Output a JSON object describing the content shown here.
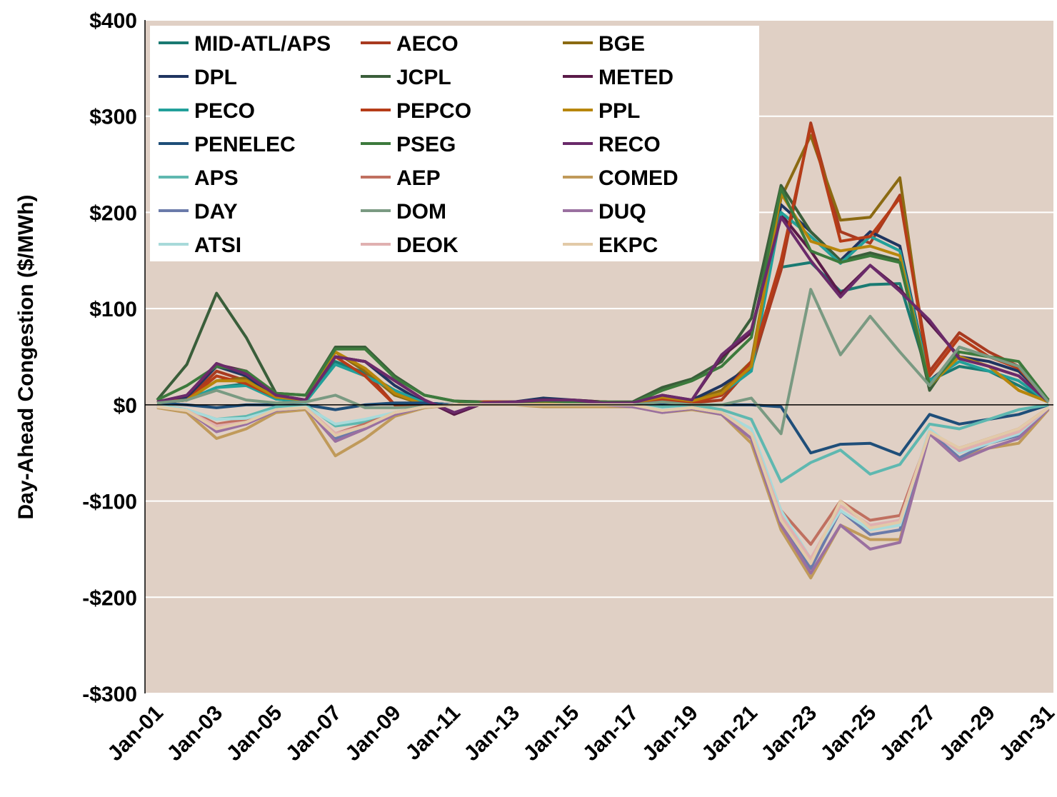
{
  "chart_data": {
    "type": "line",
    "y_label": "Day-Ahead Congestion ($/MWh)",
    "categories": [
      "Jan-01",
      null,
      "Jan-03",
      null,
      "Jan-05",
      null,
      "Jan-07",
      null,
      "Jan-09",
      null,
      "Jan-11",
      null,
      "Jan-13",
      null,
      "Jan-15",
      null,
      "Jan-17",
      null,
      "Jan-19",
      null,
      "Jan-21",
      null,
      "Jan-23",
      null,
      "Jan-25",
      null,
      "Jan-27",
      null,
      "Jan-29",
      null,
      "Jan-31"
    ],
    "ylim": [
      -300,
      400
    ],
    "yticks": [
      {
        "value": -300,
        "label": "-$300"
      },
      {
        "value": -200,
        "label": "-$200"
      },
      {
        "value": -100,
        "label": "-$100"
      },
      {
        "value": 0,
        "label": "$0"
      },
      {
        "value": 100,
        "label": "$100"
      },
      {
        "value": 200,
        "label": "$200"
      },
      {
        "value": 300,
        "label": "$300"
      },
      {
        "value": 400,
        "label": "$400"
      }
    ],
    "grid": true,
    "legend": "upper left",
    "series": [
      {
        "name": "MID-ATL/APS",
        "color": "#1a7a72",
        "values": [
          2,
          5,
          18,
          22,
          6,
          3,
          45,
          33,
          15,
          2,
          0,
          2,
          2,
          3,
          2,
          2,
          2,
          5,
          3,
          10,
          38,
          143,
          148,
          118,
          125,
          126,
          25,
          40,
          35,
          20,
          3
        ]
      },
      {
        "name": "AECO",
        "color": "#a83a20",
        "values": [
          3,
          5,
          35,
          25,
          8,
          5,
          55,
          35,
          0,
          0,
          0,
          3,
          3,
          3,
          3,
          3,
          2,
          5,
          2,
          5,
          40,
          140,
          293,
          180,
          168,
          218,
          35,
          75,
          55,
          40,
          5
        ]
      },
      {
        "name": "BGE",
        "color": "#8b6a12",
        "values": [
          2,
          5,
          25,
          28,
          8,
          5,
          55,
          35,
          10,
          0,
          0,
          2,
          2,
          2,
          2,
          2,
          2,
          8,
          5,
          15,
          45,
          215,
          280,
          192,
          195,
          236,
          20,
          50,
          40,
          15,
          3
        ]
      },
      {
        "name": "DPL",
        "color": "#1f3560",
        "values": [
          3,
          8,
          40,
          30,
          8,
          5,
          50,
          45,
          20,
          2,
          0,
          2,
          3,
          7,
          5,
          3,
          2,
          5,
          5,
          20,
          40,
          208,
          180,
          150,
          180,
          165,
          25,
          50,
          45,
          35,
          5
        ]
      },
      {
        "name": "JCPL",
        "color": "#3a5e3a",
        "values": [
          5,
          42,
          116,
          70,
          12,
          10,
          60,
          60,
          30,
          10,
          4,
          3,
          3,
          4,
          3,
          3,
          3,
          18,
          27,
          45,
          90,
          228,
          180,
          150,
          158,
          150,
          15,
          60,
          50,
          40,
          5
        ]
      },
      {
        "name": "METED",
        "color": "#5a1a48",
        "values": [
          3,
          10,
          42,
          35,
          10,
          5,
          50,
          45,
          25,
          5,
          -10,
          2,
          3,
          5,
          5,
          3,
          2,
          10,
          5,
          50,
          75,
          198,
          160,
          115,
          145,
          120,
          85,
          50,
          40,
          30,
          3
        ]
      },
      {
        "name": "PECO",
        "color": "#22a09a",
        "values": [
          2,
          5,
          18,
          20,
          6,
          3,
          42,
          30,
          15,
          2,
          0,
          2,
          2,
          3,
          2,
          2,
          2,
          5,
          3,
          12,
          35,
          200,
          175,
          147,
          175,
          160,
          25,
          45,
          35,
          25,
          3
        ]
      },
      {
        "name": "PEPCO",
        "color": "#b63c18",
        "values": [
          3,
          5,
          30,
          22,
          8,
          5,
          50,
          30,
          0,
          0,
          0,
          3,
          3,
          3,
          3,
          3,
          2,
          5,
          2,
          10,
          45,
          150,
          290,
          170,
          175,
          215,
          30,
          70,
          50,
          38,
          4
        ]
      },
      {
        "name": "PPL",
        "color": "#b8860b",
        "values": [
          2,
          5,
          25,
          25,
          8,
          5,
          55,
          38,
          12,
          0,
          0,
          2,
          2,
          2,
          2,
          2,
          2,
          8,
          4,
          12,
          40,
          220,
          170,
          160,
          165,
          155,
          20,
          50,
          40,
          15,
          3
        ]
      },
      {
        "name": "PENELEC",
        "color": "#1f4e79",
        "values": [
          2,
          0,
          -3,
          0,
          0,
          0,
          -5,
          0,
          2,
          2,
          0,
          0,
          0,
          0,
          0,
          0,
          0,
          0,
          0,
          0,
          0,
          -2,
          -50,
          -41,
          -40,
          -52,
          -10,
          -20,
          -15,
          -10,
          0
        ]
      },
      {
        "name": "PSEG",
        "color": "#3c7a3c",
        "values": [
          5,
          20,
          40,
          35,
          12,
          10,
          58,
          58,
          28,
          10,
          4,
          2,
          3,
          4,
          3,
          3,
          2,
          15,
          25,
          40,
          70,
          225,
          160,
          148,
          155,
          148,
          20,
          55,
          50,
          45,
          5
        ]
      },
      {
        "name": "RECO",
        "color": "#6a2a6a",
        "values": [
          3,
          10,
          43,
          32,
          10,
          5,
          50,
          45,
          25,
          5,
          -8,
          2,
          3,
          5,
          5,
          2,
          2,
          10,
          5,
          52,
          78,
          195,
          150,
          112,
          145,
          118,
          88,
          48,
          40,
          30,
          3
        ]
      },
      {
        "name": "APS",
        "color": "#5fb8b0",
        "values": [
          0,
          -5,
          -15,
          -12,
          -2,
          0,
          -22,
          -18,
          -8,
          -2,
          0,
          0,
          0,
          0,
          0,
          0,
          0,
          -2,
          0,
          -5,
          -15,
          -80,
          -60,
          -47,
          -72,
          -62,
          -20,
          -25,
          -15,
          -5,
          0
        ]
      },
      {
        "name": "AEP",
        "color": "#c07060",
        "values": [
          -2,
          -5,
          -20,
          -15,
          -5,
          -3,
          -30,
          -20,
          -8,
          -2,
          0,
          0,
          0,
          0,
          0,
          0,
          0,
          -5,
          -3,
          -8,
          -30,
          -110,
          -145,
          -100,
          -120,
          -115,
          -30,
          -45,
          -35,
          -25,
          -3
        ]
      },
      {
        "name": "COMED",
        "color": "#c09a5a",
        "values": [
          -3,
          -8,
          -35,
          -25,
          -8,
          -5,
          -53,
          -35,
          -12,
          -3,
          0,
          0,
          0,
          -2,
          -2,
          -2,
          -2,
          -8,
          -5,
          -10,
          -40,
          -130,
          -180,
          -125,
          -140,
          -140,
          -30,
          -55,
          -45,
          -40,
          -5
        ]
      },
      {
        "name": "DAY",
        "color": "#6a7aaa",
        "values": [
          -2,
          -6,
          -25,
          -20,
          -6,
          -3,
          -35,
          -25,
          -10,
          -2,
          0,
          0,
          0,
          0,
          0,
          0,
          0,
          -8,
          -4,
          -10,
          -35,
          -125,
          -170,
          -110,
          -135,
          -130,
          -28,
          -55,
          -40,
          -32,
          -4
        ]
      },
      {
        "name": "DOM",
        "color": "#7a9a82",
        "values": [
          2,
          5,
          15,
          5,
          2,
          3,
          10,
          -3,
          -3,
          -2,
          0,
          0,
          0,
          0,
          0,
          0,
          0,
          3,
          0,
          0,
          7,
          -30,
          120,
          52,
          92,
          55,
          20,
          60,
          50,
          40,
          3
        ]
      },
      {
        "name": "DUQ",
        "color": "#9a70a0",
        "values": [
          -2,
          -6,
          -28,
          -20,
          -6,
          -3,
          -38,
          -25,
          -10,
          -2,
          0,
          0,
          0,
          0,
          0,
          0,
          -2,
          -8,
          -4,
          -10,
          -35,
          -125,
          -175,
          -125,
          -150,
          -143,
          -30,
          -58,
          -45,
          -35,
          -4
        ]
      },
      {
        "name": "ATSI",
        "color": "#a8dada",
        "values": [
          -1,
          -5,
          -15,
          -14,
          -5,
          -2,
          -20,
          -15,
          -8,
          -2,
          0,
          0,
          0,
          0,
          0,
          0,
          0,
          -5,
          -3,
          -8,
          -25,
          -110,
          -160,
          -110,
          -130,
          -125,
          -25,
          -50,
          -40,
          -30,
          -3
        ]
      },
      {
        "name": "DEOK",
        "color": "#e0b0b0",
        "values": [
          -2,
          -6,
          -22,
          -18,
          -5,
          -3,
          -30,
          -22,
          -8,
          -2,
          0,
          0,
          0,
          0,
          0,
          0,
          0,
          -6,
          -3,
          -8,
          -30,
          -115,
          -160,
          -105,
          -125,
          -120,
          -28,
          -48,
          -38,
          -28,
          -3
        ]
      },
      {
        "name": "EKPC",
        "color": "#e2caa8",
        "values": [
          -2,
          -6,
          -25,
          -18,
          -5,
          -3,
          -32,
          -22,
          -8,
          -2,
          0,
          0,
          0,
          0,
          0,
          0,
          0,
          -6,
          -3,
          -8,
          -30,
          -120,
          -165,
          -100,
          -128,
          -122,
          -28,
          -45,
          -35,
          -25,
          -3
        ]
      }
    ]
  }
}
